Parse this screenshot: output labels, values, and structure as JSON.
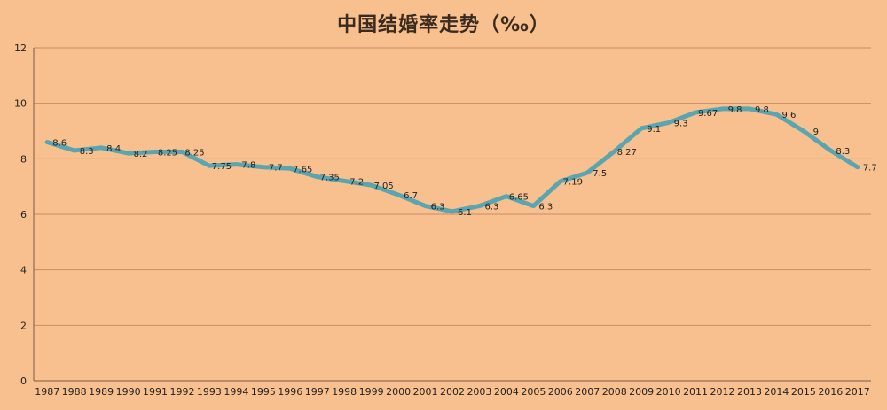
{
  "chart_data": {
    "type": "line",
    "title": "中国结婚率走势（‰）",
    "xlabel": "",
    "ylabel": "",
    "ylim": [
      0,
      12
    ],
    "yticks": [
      0,
      2,
      4,
      6,
      8,
      10,
      12
    ],
    "grid": true,
    "legend": "none",
    "categories": [
      "1987",
      "1988",
      "1989",
      "1990",
      "1991",
      "1992",
      "1993",
      "1994",
      "1995",
      "1996",
      "1997",
      "1998",
      "1999",
      "2000",
      "2001",
      "2002",
      "2003",
      "2004",
      "2005",
      "2006",
      "2007",
      "2008",
      "2009",
      "2010",
      "2011",
      "2012",
      "2013",
      "2014",
      "2015",
      "2016",
      "2017"
    ],
    "series": [
      {
        "values": [
          8.6,
          8.3,
          8.4,
          8.2,
          8.25,
          8.25,
          7.75,
          7.8,
          7.7,
          7.65,
          7.35,
          7.2,
          7.05,
          6.7,
          6.3,
          6.1,
          6.3,
          6.65,
          6.3,
          7.19,
          7.5,
          8.27,
          9.1,
          9.3,
          9.67,
          9.8,
          9.8,
          9.6,
          9,
          8.3,
          7.7
        ],
        "labels": [
          "8.6",
          "8.3",
          "8.4",
          "8.2",
          "8.25",
          "8.25",
          "7.75",
          "7.8",
          "7.7",
          "7.65",
          "7.35",
          "7.2",
          "7.05",
          "6.7",
          "6.3",
          "6.1",
          "6.3",
          "6.65",
          "6.3",
          "7.19",
          "7.5",
          "8.27",
          "9.1",
          "9.3",
          "9.67",
          "9.8",
          "9.8",
          "9.6",
          "9",
          "8.3",
          "7.7"
        ]
      }
    ],
    "colors": {
      "background": "#f8c08e",
      "line": "#5aa5b0",
      "grid": "#c98d64",
      "text": "#222222"
    }
  }
}
